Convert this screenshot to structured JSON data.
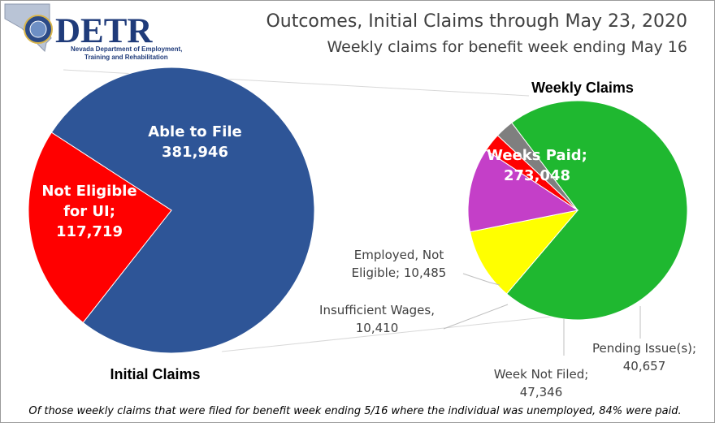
{
  "logo": {
    "name": "DETR",
    "org_line1": "Nevada Department of Employment,",
    "org_line2": "Training and Rehabilitation"
  },
  "title": "Outcomes, Initial Claims through May 23, 2020",
  "subtitle": "Weekly claims for benefit week ending May 16",
  "footnote": "Of those weekly claims that were filed for benefit week ending 5/16 where the individual was unemployed, 84% were paid.",
  "chart_data": [
    {
      "type": "pie",
      "title": "Initial Claims",
      "start_angle_deg": 213,
      "slices": [
        {
          "label": "Able to File",
          "value": 381946,
          "value_text": "381,946",
          "color": "#2e5597"
        },
        {
          "label": "Not Eligible for UI",
          "value": 117719,
          "value_text": "117,719",
          "color": "#ff0000"
        }
      ]
    },
    {
      "type": "pie",
      "title": "Weekly Claims",
      "start_angle_deg": 233,
      "slices": [
        {
          "label": "Weeks Paid",
          "value": 273048,
          "value_text": "273,048",
          "color": "#1fb830"
        },
        {
          "label": "Pending Issue(s)",
          "value": 40657,
          "value_text": "40,657",
          "color": "#ffff00"
        },
        {
          "label": "Week Not Filed",
          "value": 47346,
          "value_text": "47,346",
          "color": "#c43fc8"
        },
        {
          "label": "Insufficient Wages",
          "value": 10410,
          "value_text": "10,410",
          "color": "#ff0000"
        },
        {
          "label": "Employed, Not Eligible",
          "value": 10485,
          "value_text": "10,485",
          "color": "#7f7f7f"
        }
      ]
    }
  ]
}
